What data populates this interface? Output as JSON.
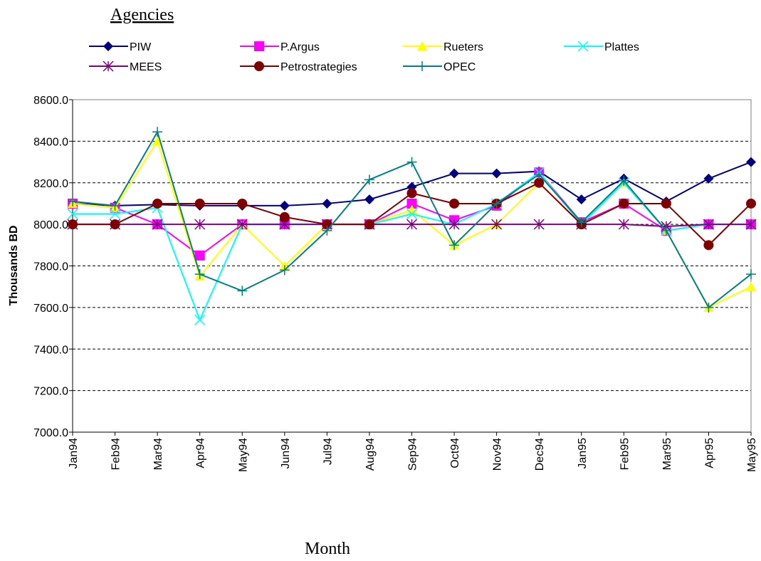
{
  "chart_data": {
    "type": "line",
    "legend_title": "Agencies",
    "x_label": "Month",
    "y_label": "Thousands BD",
    "categories": [
      "Jan94",
      "Feb94",
      "Mar94",
      "Apr94",
      "May94",
      "Jun94",
      "Jul94",
      "Aug94",
      "Sep94",
      "Oct94",
      "Nov94",
      "Dec94",
      "Jan95",
      "Feb95",
      "Mar95",
      "Apr95",
      "May95"
    ],
    "ylim": [
      7000,
      8600
    ],
    "yticks": [
      {
        "value": 7000,
        "label": "7000.0"
      },
      {
        "value": 7200,
        "label": "7200.0"
      },
      {
        "value": 7400,
        "label": "7400.0"
      },
      {
        "value": 7600,
        "label": "7600.0"
      },
      {
        "value": 7800,
        "label": "7800.0"
      },
      {
        "value": 8000,
        "label": "8000.0"
      },
      {
        "value": 8200,
        "label": "8200.0"
      },
      {
        "value": 8400,
        "label": "8400.0"
      },
      {
        "value": 8600,
        "label": "8600.0"
      }
    ],
    "grid": true,
    "series": [
      {
        "name": "PIW",
        "color": "#000080",
        "marker": "diamond",
        "values": [
          8100,
          8090,
          8095,
          8090,
          8090,
          8090,
          8100,
          8120,
          8180,
          8245,
          8245,
          8255,
          8120,
          8220,
          8110,
          8220,
          8300
        ]
      },
      {
        "name": "P.Argus",
        "color": "#ff00ff",
        "marker": "square",
        "values": [
          8100,
          8080,
          8000,
          7850,
          8000,
          8000,
          8000,
          8000,
          8100,
          8020,
          8090,
          8250,
          8010,
          8100,
          7970,
          8000,
          8000
        ]
      },
      {
        "name": "Rueters",
        "color": "#ffff00",
        "marker": "triangle",
        "values": [
          8100,
          8080,
          8400,
          7750,
          8000,
          7800,
          8000,
          8000,
          8070,
          7900,
          8000,
          8200,
          8000,
          8200,
          7970,
          7600,
          7700
        ]
      },
      {
        "name": "Plattes",
        "color": "#00ffff",
        "marker": "x",
        "values": [
          8050,
          8050,
          8080,
          7540,
          8000,
          8000,
          8000,
          8000,
          8050,
          8000,
          8100,
          8250,
          8000,
          8200,
          7970,
          8000,
          8000
        ]
      },
      {
        "name": "MEES",
        "color": "#800080",
        "marker": "star",
        "values": [
          8000,
          8000,
          8000,
          8000,
          8000,
          8000,
          8000,
          8000,
          8000,
          8000,
          8000,
          8000,
          8000,
          8000,
          7990,
          8000,
          8000
        ]
      },
      {
        "name": "Petrostrategies",
        "color": "#800000",
        "marker": "circle",
        "values": [
          8000,
          8000,
          8100,
          8100,
          8100,
          8035,
          8000,
          8000,
          8150,
          8100,
          8100,
          8200,
          8000,
          8100,
          8100,
          7900,
          8100
        ]
      },
      {
        "name": "OPEC",
        "color": "#008080",
        "marker": "plus",
        "values": [
          8110,
          8090,
          8445,
          7760,
          7680,
          7780,
          7970,
          8215,
          8300,
          7900,
          8100,
          8240,
          8010,
          8210,
          7970,
          7600,
          7760
        ]
      }
    ]
  }
}
